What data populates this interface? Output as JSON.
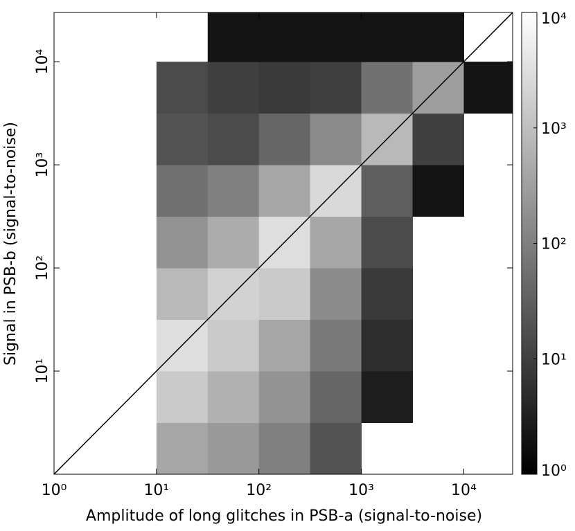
{
  "chart_data": {
    "type": "hist2d",
    "x_label": "Amplitude of long glitches in PSB-a (signal-to-noise)",
    "y_label": "Signal in PSB-b (signal-to-noise)",
    "log_x": true,
    "log_y": true,
    "log_color": true,
    "colormap": "gray",
    "diagonal": true,
    "xlim": [
      1,
      30000
    ],
    "ylim": [
      1,
      30000
    ],
    "xticks": [
      {
        "value": 1,
        "label": "10⁰"
      },
      {
        "value": 10,
        "label": "10¹"
      },
      {
        "value": 100,
        "label": "10²"
      },
      {
        "value": 1000,
        "label": "10³"
      },
      {
        "value": 10000,
        "label": "10⁴"
      }
    ],
    "yticks": [
      {
        "value": 10,
        "label": "10¹"
      },
      {
        "value": 100,
        "label": "10²"
      },
      {
        "value": 1000,
        "label": "10³"
      },
      {
        "value": 10000,
        "label": "10⁴"
      }
    ],
    "clim": [
      1,
      10000
    ],
    "cticks": [
      {
        "value": 1,
        "label": "10⁰"
      },
      {
        "value": 10,
        "label": "10¹"
      },
      {
        "value": 100,
        "label": "10²"
      },
      {
        "value": 1000,
        "label": "10³"
      },
      {
        "value": 10000,
        "label": "10⁴"
      }
    ],
    "xbins": [
      1,
      3.162,
      10,
      31.62,
      100,
      316.2,
      1000,
      3162,
      10000,
      30000
    ],
    "ybins": [
      1,
      3.162,
      10,
      31.62,
      100,
      316.2,
      1000,
      3162,
      10000,
      30000
    ],
    "z": [
      [
        null,
        null,
        400,
        250,
        100,
        20,
        null,
        null,
        null
      ],
      [
        null,
        null,
        1500,
        600,
        200,
        40,
        3,
        null,
        null
      ],
      [
        null,
        null,
        3000,
        1500,
        400,
        80,
        5,
        null,
        null
      ],
      [
        null,
        null,
        800,
        2000,
        1500,
        150,
        8,
        null,
        null
      ],
      [
        null,
        null,
        200,
        500,
        3000,
        400,
        15,
        null,
        null
      ],
      [
        null,
        null,
        60,
        100,
        400,
        2500,
        30,
        2,
        null
      ],
      [
        null,
        null,
        20,
        15,
        40,
        150,
        800,
        10,
        null
      ],
      [
        null,
        null,
        15,
        10,
        8,
        10,
        60,
        300,
        2
      ],
      [
        null,
        null,
        null,
        2,
        2,
        2,
        2,
        2,
        null
      ]
    ]
  }
}
